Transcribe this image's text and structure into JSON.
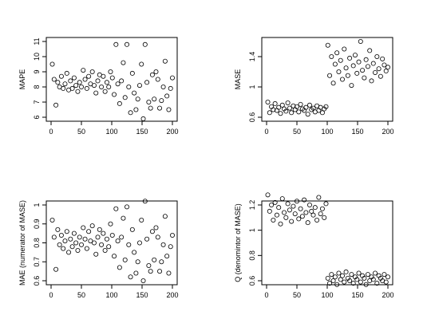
{
  "chart_data": [
    {
      "type": "scatter",
      "title": "",
      "xlabel": "",
      "ylabel": "MAPE",
      "xlim": [
        0,
        200
      ],
      "ylim": [
        6,
        11
      ],
      "xticks": [
        0,
        50,
        100,
        150,
        200
      ],
      "yticks": [
        6,
        7,
        8,
        9,
        10,
        11
      ],
      "grid": false,
      "marker": "open-circle",
      "x": [
        2,
        5,
        8,
        11,
        14,
        17,
        20,
        23,
        26,
        29,
        32,
        35,
        38,
        41,
        44,
        47,
        50,
        53,
        56,
        59,
        62,
        65,
        68,
        71,
        74,
        77,
        80,
        83,
        86,
        89,
        92,
        95,
        98,
        101,
        104,
        107,
        110,
        113,
        116,
        119,
        122,
        125,
        128,
        131,
        134,
        137,
        140,
        143,
        146,
        149,
        152,
        155,
        158,
        161,
        164,
        167,
        170,
        173,
        176,
        179,
        182,
        185,
        188,
        191,
        194,
        197,
        200
      ],
      "y": [
        9.5,
        8.5,
        6.8,
        8.3,
        8.0,
        8.7,
        7.9,
        8.2,
        8.9,
        7.8,
        8.4,
        7.9,
        8.6,
        8.1,
        7.7,
        8.3,
        8.0,
        9.1,
        8.5,
        7.9,
        8.7,
        8.2,
        9.0,
        8.1,
        7.6,
        8.4,
        8.8,
        8.0,
        8.7,
        7.7,
        8.3,
        8.0,
        9.0,
        8.6,
        7.5,
        10.8,
        8.2,
        6.9,
        8.4,
        9.6,
        7.3,
        10.8,
        8.0,
        6.3,
        8.9,
        7.6,
        6.5,
        7.2,
        8.1,
        9.5,
        5.9,
        10.8,
        8.3,
        7.0,
        6.6,
        8.8,
        7.2,
        9.0,
        8.5,
        6.6,
        7.1,
        8.0,
        9.7,
        7.4,
        6.5,
        7.9,
        8.6
      ]
    },
    {
      "type": "scatter",
      "title": "",
      "xlabel": "",
      "ylabel": "MASE",
      "xlim": [
        0,
        200
      ],
      "ylim": [
        0.6,
        1.6
      ],
      "xticks": [
        0,
        50,
        100,
        150,
        200
      ],
      "yticks": [
        0.6,
        1.0,
        1.4
      ],
      "grid": false,
      "marker": "open-circle",
      "x": [
        2,
        5,
        8,
        11,
        14,
        17,
        20,
        23,
        26,
        29,
        32,
        35,
        38,
        41,
        44,
        47,
        50,
        53,
        56,
        59,
        62,
        65,
        68,
        71,
        74,
        77,
        80,
        83,
        86,
        89,
        92,
        95,
        98,
        101,
        104,
        107,
        110,
        113,
        116,
        119,
        122,
        125,
        128,
        131,
        134,
        137,
        140,
        143,
        146,
        149,
        152,
        155,
        158,
        161,
        164,
        167,
        170,
        173,
        176,
        179,
        182,
        185,
        188,
        191,
        194,
        197,
        200
      ],
      "y": [
        0.8,
        0.66,
        0.74,
        0.7,
        0.78,
        0.69,
        0.73,
        0.65,
        0.76,
        0.71,
        0.68,
        0.79,
        0.72,
        0.66,
        0.75,
        0.7,
        0.74,
        0.67,
        0.77,
        0.71,
        0.69,
        0.73,
        0.64,
        0.76,
        0.7,
        0.72,
        0.67,
        0.75,
        0.69,
        0.73,
        0.66,
        0.71,
        0.74,
        1.55,
        1.15,
        1.4,
        1.05,
        1.3,
        1.45,
        1.2,
        1.35,
        1.1,
        1.5,
        1.25,
        1.15,
        1.38,
        1.02,
        1.28,
        1.42,
        1.18,
        1.33,
        1.6,
        1.22,
        1.12,
        1.36,
        1.27,
        1.48,
        1.08,
        1.31,
        1.19,
        1.4,
        1.24,
        1.14,
        1.37,
        1.29,
        1.21,
        1.26
      ]
    },
    {
      "type": "scatter",
      "title": "",
      "xlabel": "",
      "ylabel": "MAE (numerator of MASE)",
      "xlim": [
        0,
        200
      ],
      "ylim": [
        0.6,
        1.0
      ],
      "xticks": [
        0,
        50,
        100,
        150,
        200
      ],
      "yticks": [
        0.6,
        0.7,
        0.8,
        0.9,
        1.0
      ],
      "grid": false,
      "marker": "open-circle",
      "x": [
        2,
        5,
        8,
        11,
        14,
        17,
        20,
        23,
        26,
        29,
        32,
        35,
        38,
        41,
        44,
        47,
        50,
        53,
        56,
        59,
        62,
        65,
        68,
        71,
        74,
        77,
        80,
        83,
        86,
        89,
        92,
        95,
        98,
        101,
        104,
        107,
        110,
        113,
        116,
        119,
        122,
        125,
        128,
        131,
        134,
        137,
        140,
        143,
        146,
        149,
        152,
        155,
        158,
        161,
        164,
        167,
        170,
        173,
        176,
        179,
        182,
        185,
        188,
        191,
        194,
        197,
        200
      ],
      "y": [
        0.92,
        0.83,
        0.66,
        0.87,
        0.79,
        0.84,
        0.77,
        0.81,
        0.86,
        0.75,
        0.82,
        0.78,
        0.85,
        0.8,
        0.76,
        0.83,
        0.79,
        0.88,
        0.82,
        0.77,
        0.86,
        0.81,
        0.89,
        0.8,
        0.74,
        0.83,
        0.87,
        0.79,
        0.85,
        0.76,
        0.82,
        0.78,
        0.9,
        0.84,
        0.73,
        0.98,
        0.81,
        0.67,
        0.83,
        0.93,
        0.71,
        0.99,
        0.79,
        0.62,
        0.87,
        0.75,
        0.64,
        0.7,
        0.8,
        0.92,
        0.6,
        1.02,
        0.82,
        0.68,
        0.65,
        0.86,
        0.71,
        0.88,
        0.83,
        0.65,
        0.7,
        0.79,
        0.94,
        0.73,
        0.64,
        0.78,
        0.84
      ]
    },
    {
      "type": "scatter",
      "title": "",
      "xlabel": "",
      "ylabel": "Q (denomintor of MASE)",
      "xlim": [
        0,
        200
      ],
      "ylim": [
        0.6,
        1.2
      ],
      "xticks": [
        0,
        50,
        100,
        150,
        200
      ],
      "yticks": [
        0.6,
        0.8,
        1.0,
        1.2
      ],
      "grid": false,
      "marker": "open-circle",
      "x": [
        2,
        5,
        8,
        11,
        14,
        17,
        20,
        23,
        26,
        29,
        32,
        35,
        38,
        41,
        44,
        47,
        50,
        53,
        56,
        59,
        62,
        65,
        68,
        71,
        74,
        77,
        80,
        83,
        86,
        89,
        92,
        95,
        98,
        101,
        104,
        107,
        110,
        113,
        116,
        119,
        122,
        125,
        128,
        131,
        134,
        137,
        140,
        143,
        146,
        149,
        152,
        155,
        158,
        161,
        164,
        167,
        170,
        173,
        176,
        179,
        182,
        185,
        188,
        191,
        194,
        197,
        200
      ],
      "y": [
        1.28,
        1.15,
        1.2,
        1.08,
        1.22,
        1.12,
        1.18,
        1.05,
        1.25,
        1.14,
        1.1,
        1.21,
        1.16,
        1.07,
        1.19,
        1.13,
        1.23,
        1.09,
        1.17,
        1.11,
        1.24,
        1.14,
        1.06,
        1.2,
        1.15,
        1.12,
        1.18,
        1.08,
        1.26,
        1.13,
        1.17,
        1.1,
        1.21,
        0.62,
        0.58,
        0.65,
        0.6,
        0.63,
        0.57,
        0.66,
        0.61,
        0.64,
        0.59,
        0.67,
        0.62,
        0.6,
        0.65,
        0.58,
        0.63,
        0.61,
        0.66,
        0.59,
        0.64,
        0.62,
        0.57,
        0.65,
        0.6,
        0.63,
        0.61,
        0.66,
        0.58,
        0.64,
        0.62,
        0.6,
        0.65,
        0.59,
        0.63
      ]
    }
  ]
}
